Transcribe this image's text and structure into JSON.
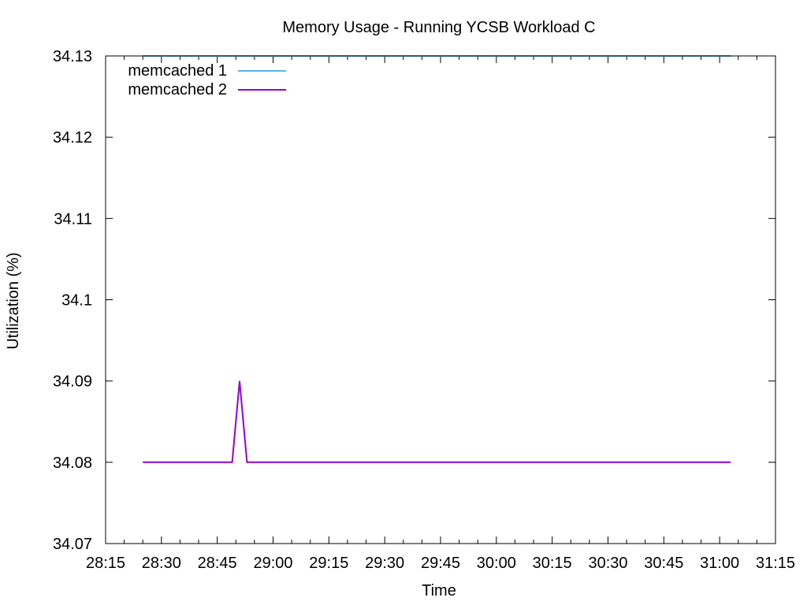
{
  "chart_data": {
    "type": "line",
    "title": "Memory Usage - Running YCSB Workload C",
    "xlabel": "Time",
    "ylabel": "Utilization (%)",
    "xlim": [
      "28:15",
      "31:15"
    ],
    "ylim": [
      34.07,
      34.13
    ],
    "x_ticks": [
      "28:15",
      "28:30",
      "28:45",
      "29:00",
      "29:15",
      "29:30",
      "29:45",
      "30:00",
      "30:15",
      "30:30",
      "30:45",
      "31:00",
      "31:15"
    ],
    "y_ticks": [
      "34.07",
      "34.08",
      "34.09",
      "34.1",
      "34.11",
      "34.12",
      "34.13"
    ],
    "grid": false,
    "legend_position": "top-left",
    "series": [
      {
        "name": "memcached 1",
        "color": "#56b4e9",
        "x": [
          "28:25",
          "31:03"
        ],
        "y": [
          34.13,
          34.13
        ]
      },
      {
        "name": "memcached 2",
        "color": "#9400d3",
        "x": [
          "28:25",
          "28:49",
          "28:51",
          "28:53",
          "31:03"
        ],
        "y": [
          34.08,
          34.08,
          34.09,
          34.08,
          34.08
        ]
      }
    ]
  }
}
